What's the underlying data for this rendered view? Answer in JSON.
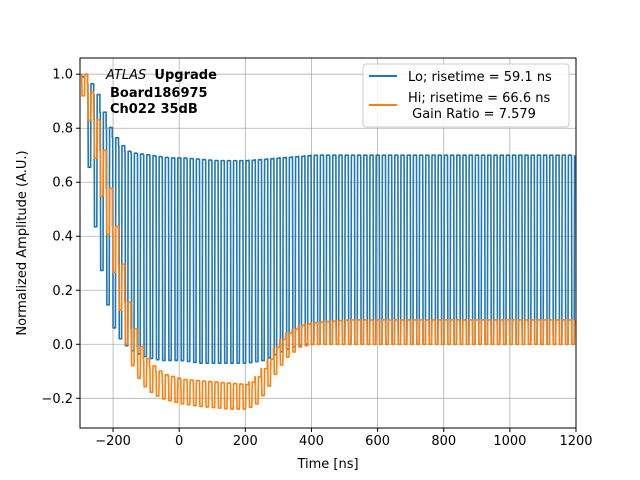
{
  "chart_data": {
    "type": "line",
    "xlabel": "Time [ns]",
    "ylabel": "Normalized Amplitude (A.U.)",
    "xlim": [
      -300,
      1200
    ],
    "ylim": [
      -0.31,
      1.06
    ],
    "xticks": [
      -200,
      0,
      200,
      400,
      600,
      800,
      1000,
      1200
    ],
    "xtick_labels": [
      "−200",
      "0",
      "200",
      "400",
      "600",
      "800",
      "1000",
      "1200"
    ],
    "yticks": [
      -0.2,
      0.0,
      0.2,
      0.4,
      0.6,
      0.8,
      1.0
    ],
    "ytick_labels": [
      "−0.2",
      "0.0",
      "0.2",
      "0.4",
      "0.6",
      "0.8",
      "1.0"
    ],
    "grid": true,
    "legend_position": "top-right",
    "annotation": {
      "italic": "ATLAS",
      "bold": "Upgrade",
      "line2": "Board186975",
      "line3": "Ch022 35dB"
    },
    "series": [
      {
        "name": "Lo; risetime = 59.1 ns",
        "color": "#1f77b4",
        "oscillation_period_ns": 18.75,
        "low_level": 0.0,
        "envelope": [
          [
            -296,
            0.99
          ],
          [
            -290,
            0.84
          ],
          [
            -270,
            0.55
          ],
          [
            -250,
            0.35
          ],
          [
            -230,
            0.2
          ],
          [
            -210,
            0.08
          ],
          [
            -190,
            0.03
          ],
          [
            -170,
            0.0
          ],
          [
            -140,
            -0.03
          ],
          [
            -100,
            -0.05
          ],
          [
            -60,
            -0.06
          ],
          [
            0,
            -0.06
          ],
          [
            60,
            -0.07
          ],
          [
            150,
            -0.07
          ],
          [
            200,
            -0.07
          ],
          [
            250,
            -0.06
          ],
          [
            300,
            -0.03
          ],
          [
            340,
            -0.01
          ],
          [
            380,
            0.0
          ],
          [
            450,
            0.0
          ],
          [
            1200,
            0.0
          ]
        ],
        "peak_envelope": [
          [
            -296,
            1.0
          ],
          [
            -280,
            0.97
          ],
          [
            -260,
            0.93
          ],
          [
            -240,
            0.86
          ],
          [
            -220,
            0.8
          ],
          [
            -200,
            0.76
          ],
          [
            -180,
            0.73
          ],
          [
            -160,
            0.71
          ],
          [
            -100,
            0.7
          ],
          [
            -40,
            0.69
          ],
          [
            0,
            0.69
          ],
          [
            100,
            0.68
          ],
          [
            200,
            0.68
          ],
          [
            300,
            0.69
          ],
          [
            400,
            0.7
          ],
          [
            600,
            0.7
          ],
          [
            1200,
            0.7
          ]
        ]
      },
      {
        "name": "Hi; risetime = 66.6 ns\n Gain Ratio = 7.579",
        "color": "#ff7f0e",
        "oscillation_period_ns": 18.75,
        "low_level": 0.0,
        "envelope": [
          [
            -296,
            0.92
          ],
          [
            -280,
            0.85
          ],
          [
            -260,
            0.7
          ],
          [
            -240,
            0.55
          ],
          [
            -220,
            0.4
          ],
          [
            -200,
            0.25
          ],
          [
            -180,
            0.1
          ],
          [
            -160,
            -0.03
          ],
          [
            -140,
            -0.1
          ],
          [
            -120,
            -0.14
          ],
          [
            -100,
            -0.17
          ],
          [
            -60,
            -0.2
          ],
          [
            0,
            -0.22
          ],
          [
            60,
            -0.23
          ],
          [
            150,
            -0.24
          ],
          [
            200,
            -0.24
          ],
          [
            230,
            -0.22
          ],
          [
            260,
            -0.17
          ],
          [
            290,
            -0.1
          ],
          [
            320,
            -0.05
          ],
          [
            360,
            -0.01
          ],
          [
            400,
            0.0
          ],
          [
            1200,
            0.0
          ]
        ],
        "peak_envelope": [
          [
            -296,
            1.0
          ],
          [
            -280,
            0.95
          ],
          [
            -260,
            0.84
          ],
          [
            -240,
            0.72
          ],
          [
            -220,
            0.57
          ],
          [
            -200,
            0.42
          ],
          [
            -180,
            0.27
          ],
          [
            -160,
            0.12
          ],
          [
            -140,
            0.03
          ],
          [
            -120,
            -0.03
          ],
          [
            -100,
            -0.07
          ],
          [
            -60,
            -0.11
          ],
          [
            0,
            -0.13
          ],
          [
            100,
            -0.14
          ],
          [
            200,
            -0.15
          ],
          [
            230,
            -0.12
          ],
          [
            260,
            -0.07
          ],
          [
            290,
            0.0
          ],
          [
            320,
            0.04
          ],
          [
            360,
            0.07
          ],
          [
            400,
            0.08
          ],
          [
            500,
            0.09
          ],
          [
            1200,
            0.09
          ]
        ]
      }
    ]
  }
}
